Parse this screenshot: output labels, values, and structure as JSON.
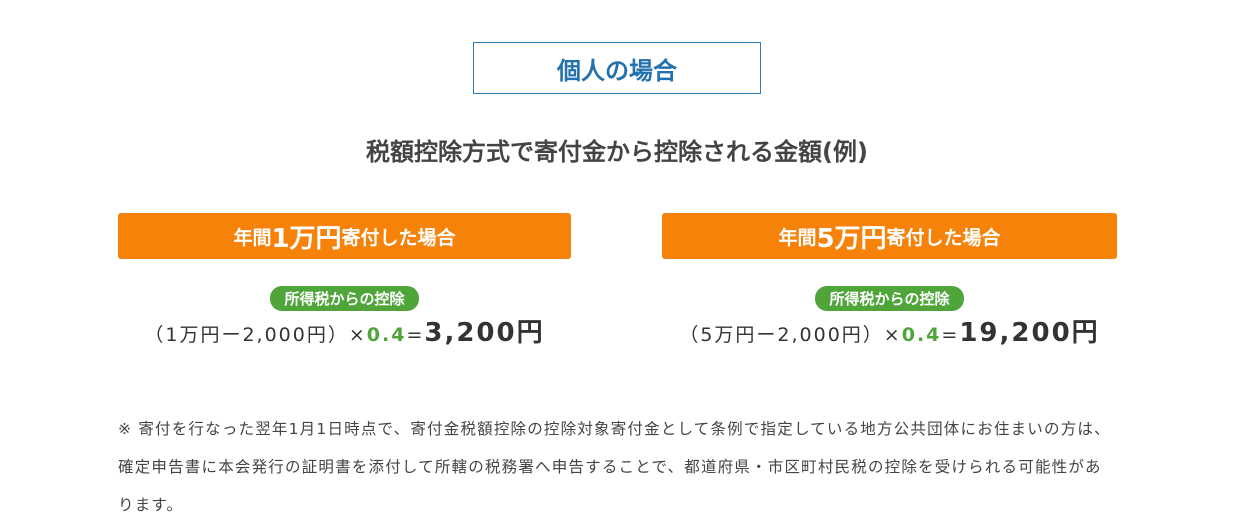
{
  "heading": "個人の場合",
  "subtitle": "税額控除方式で寄付金から控除される金額(例)",
  "cases": [
    {
      "pre": "年間",
      "amount": "1万円",
      "post": "寄付した場合",
      "pill": "所得税からの控除",
      "formula": "（1万円ー2,000円）×",
      "rate": "0.4",
      "eq": "=",
      "result": "3,200円"
    },
    {
      "pre": "年間",
      "amount": "5万円",
      "post": "寄付した場合",
      "pill": "所得税からの控除",
      "formula": "（5万円ー2,000円）×",
      "rate": "0.4",
      "eq": "=",
      "result": "19,200円"
    }
  ],
  "note": "※ 寄付を行なった翌年1月1日時点で、寄付金税額控除の控除対象寄付金として条例で指定している地方公共団体にお住まいの方は、確定申告書に本会発行の証明書を添付して所轄の税務署へ申告することで、都道府県・市区町村民税の控除を受けられる可能性があります。",
  "colors": {
    "orange": "#f7820a",
    "green": "#50a53a",
    "blue": "#2472ad"
  }
}
